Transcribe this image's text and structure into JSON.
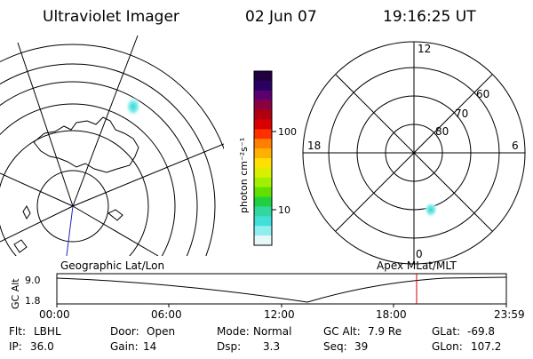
{
  "header": {
    "title": "Ultraviolet Imager",
    "date": "02 Jun 07",
    "time": "19:16:25 UT"
  },
  "geo_panel": {
    "caption": "Geographic Lat/Lon"
  },
  "colorbar": {
    "unit_label": "photon cm⁻²s⁻¹",
    "scale": "log",
    "tick_labels": [
      "100",
      "10"
    ],
    "colors": [
      "#200040",
      "#2a0060",
      "#5a0070",
      "#8a0040",
      "#b00010",
      "#d80000",
      "#ff3000",
      "#ff8000",
      "#ffb000",
      "#ffe000",
      "#d8f000",
      "#a0f000",
      "#60e000",
      "#20d040",
      "#30d8a0",
      "#40e0d8",
      "#90eef0",
      "#e8f8f8"
    ]
  },
  "polar_panel": {
    "caption": "Apex MLat/MLT",
    "mlt_labels": {
      "top": "12",
      "left": "18",
      "right": "6",
      "bottom": "0"
    },
    "mlat_labels": [
      "60",
      "70",
      "80"
    ]
  },
  "timeline": {
    "ylabel": "GC Alt",
    "yticks": [
      "9.0",
      "1.8"
    ],
    "xticks": [
      "00:00",
      "06:00",
      "12:00",
      "18:00",
      "23:59"
    ],
    "marker_color": "#cc0000"
  },
  "status": {
    "row1": [
      {
        "key": "Flt:",
        "value": "LBHL"
      },
      {
        "key": "Door:",
        "value": "Open"
      },
      {
        "key": "Mode:",
        "value": "Normal"
      },
      {
        "key": "GC Alt:",
        "value": "7.9 Re"
      },
      {
        "key": "GLat:",
        "value": "-69.8"
      }
    ],
    "row2": [
      {
        "key": "IP:",
        "value": "36.0"
      },
      {
        "key": "Gain:",
        "value": "14"
      },
      {
        "key": "Dsp:",
        "value": "3.3"
      },
      {
        "key": "Seq:",
        "value": "39"
      },
      {
        "key": "GLon:",
        "value": "107.2"
      }
    ]
  }
}
